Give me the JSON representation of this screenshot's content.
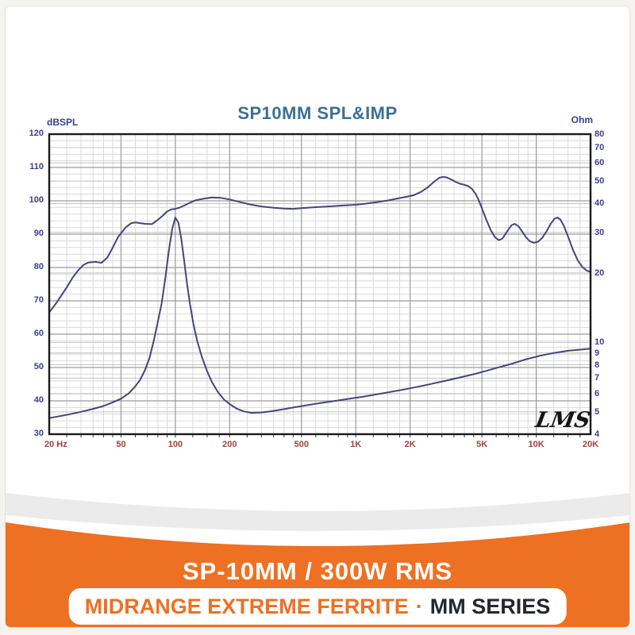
{
  "colors": {
    "accent": "#ee7023",
    "page_bg": "#f4f3f0",
    "title": "#3c7092",
    "blue_tick": "#3a3f8f",
    "red_tick": "#a43f3f",
    "curve": "#45457a",
    "grid_major": "#9a9a9a",
    "grid_minor": "#dadada",
    "grid_ohm": "#c3c3c3",
    "axis_border": "#1a1a1a",
    "wave_gray": "#ebebeb",
    "pill_dark": "#23272e"
  },
  "banner": {
    "title": "SP-10MM / 300W RMS",
    "pill_left": "MIDRANGE EXTREME FERRITE",
    "pill_sep": "·",
    "pill_right": "MM SERIES"
  },
  "chart_data": {
    "type": "line",
    "title": "SP10MM SPL&IMP",
    "watermark": "LMS",
    "grid": true,
    "x_axis": {
      "scale": "log",
      "unit": "Hz",
      "min": 20,
      "max": 20000,
      "ticks": [
        {
          "v": 20,
          "label": "20 Hz"
        },
        {
          "v": 50,
          "label": "50"
        },
        {
          "v": 100,
          "label": "100"
        },
        {
          "v": 200,
          "label": "200"
        },
        {
          "v": 500,
          "label": "500"
        },
        {
          "v": 1000,
          "label": "1K"
        },
        {
          "v": 2000,
          "label": "2K"
        },
        {
          "v": 5000,
          "label": "5K"
        },
        {
          "v": 10000,
          "label": "10K"
        },
        {
          "v": 20000,
          "label": "20K"
        }
      ],
      "major_gridlines": [
        50,
        100,
        200,
        500,
        1000,
        2000,
        5000,
        10000
      ],
      "minor_gridlines": [
        25,
        30,
        35,
        40,
        45,
        60,
        70,
        80,
        90,
        125,
        150,
        175,
        250,
        300,
        350,
        400,
        450,
        600,
        700,
        800,
        900,
        1250,
        1500,
        1750,
        2500,
        3000,
        3500,
        4000,
        4500,
        6000,
        7000,
        8000,
        9000,
        12500,
        15000,
        17500
      ]
    },
    "y_left": {
      "label": "dBSPL",
      "scale": "linear",
      "min": 30,
      "max": 120,
      "major_step": 10,
      "minor_step": 2,
      "ticks": [
        120,
        110,
        100,
        90,
        80,
        70,
        60,
        50,
        40,
        30
      ]
    },
    "y_right": {
      "label": "Ohm",
      "scale": "log",
      "min": 4,
      "max": 80,
      "ticks": [
        80,
        70,
        60,
        50,
        40,
        30,
        20,
        10,
        9,
        8,
        7,
        6,
        5,
        4
      ],
      "gridlines": [
        70,
        60,
        50,
        40,
        30,
        20,
        10,
        9,
        8,
        7,
        6,
        5
      ]
    },
    "series": [
      {
        "name": "SPL",
        "axis": "left",
        "unit": "dBSPL",
        "points": [
          [
            20,
            66.5
          ],
          [
            22,
            69.5
          ],
          [
            25,
            74
          ],
          [
            27,
            77
          ],
          [
            29,
            79.2
          ],
          [
            31,
            80.8
          ],
          [
            33,
            81.5
          ],
          [
            36,
            81.7
          ],
          [
            39,
            81.4
          ],
          [
            42,
            83
          ],
          [
            45,
            86
          ],
          [
            48,
            89
          ],
          [
            50,
            90.3
          ],
          [
            53,
            92
          ],
          [
            57,
            93.3
          ],
          [
            60,
            93.5
          ],
          [
            64,
            93.3
          ],
          [
            68,
            93.1
          ],
          [
            74,
            93.0
          ],
          [
            80,
            94.3
          ],
          [
            85,
            95.5
          ],
          [
            90,
            96.8
          ],
          [
            95,
            97.4
          ],
          [
            100,
            97.6
          ],
          [
            106,
            98.0
          ],
          [
            113,
            98.7
          ],
          [
            120,
            99.4
          ],
          [
            130,
            100.2
          ],
          [
            145,
            100.7
          ],
          [
            160,
            101.0
          ],
          [
            178,
            100.9
          ],
          [
            200,
            100.4
          ],
          [
            230,
            99.6
          ],
          [
            260,
            98.9
          ],
          [
            300,
            98.3
          ],
          [
            350,
            97.9
          ],
          [
            400,
            97.7
          ],
          [
            450,
            97.6
          ],
          [
            500,
            97.8
          ],
          [
            600,
            98.1
          ],
          [
            700,
            98.3
          ],
          [
            850,
            98.6
          ],
          [
            1000,
            98.8
          ],
          [
            1150,
            99.2
          ],
          [
            1300,
            99.6
          ],
          [
            1500,
            100.1
          ],
          [
            1700,
            100.7
          ],
          [
            1900,
            101.2
          ],
          [
            2100,
            101.7
          ],
          [
            2300,
            102.7
          ],
          [
            2500,
            104.0
          ],
          [
            2700,
            105.6
          ],
          [
            2900,
            106.9
          ],
          [
            3050,
            107.2
          ],
          [
            3200,
            107.0
          ],
          [
            3400,
            106.3
          ],
          [
            3600,
            105.6
          ],
          [
            3800,
            105.1
          ],
          [
            4000,
            104.8
          ],
          [
            4200,
            104.4
          ],
          [
            4400,
            103.6
          ],
          [
            4600,
            102.2
          ],
          [
            4800,
            100.2
          ],
          [
            5000,
            97.8
          ],
          [
            5300,
            94.2
          ],
          [
            5600,
            91.2
          ],
          [
            5900,
            89.1
          ],
          [
            6200,
            88.2
          ],
          [
            6500,
            88.7
          ],
          [
            6900,
            90.8
          ],
          [
            7300,
            92.7
          ],
          [
            7600,
            93.1
          ],
          [
            8000,
            92.3
          ],
          [
            8400,
            90.6
          ],
          [
            8800,
            89.0
          ],
          [
            9200,
            87.9
          ],
          [
            9700,
            87.4
          ],
          [
            10200,
            87.7
          ],
          [
            10800,
            88.9
          ],
          [
            11400,
            90.8
          ],
          [
            12000,
            93.0
          ],
          [
            12600,
            94.6
          ],
          [
            13100,
            95.0
          ],
          [
            13600,
            94.4
          ],
          [
            14200,
            92.6
          ],
          [
            15000,
            89.3
          ],
          [
            16000,
            85.2
          ],
          [
            17000,
            82.1
          ],
          [
            18000,
            80.2
          ],
          [
            19000,
            79.1
          ],
          [
            20000,
            78.7
          ]
        ]
      },
      {
        "name": "Impedance",
        "axis": "right",
        "unit": "Ohm",
        "points": [
          [
            20,
            4.7
          ],
          [
            25,
            4.85
          ],
          [
            30,
            5.0
          ],
          [
            35,
            5.15
          ],
          [
            40,
            5.3
          ],
          [
            45,
            5.5
          ],
          [
            50,
            5.7
          ],
          [
            55,
            6.0
          ],
          [
            60,
            6.45
          ],
          [
            64,
            6.9
          ],
          [
            68,
            7.6
          ],
          [
            72,
            8.6
          ],
          [
            76,
            10.2
          ],
          [
            80,
            12.3
          ],
          [
            84,
            14.8
          ],
          [
            88,
            19.0
          ],
          [
            92,
            25.0
          ],
          [
            96,
            31.0
          ],
          [
            100,
            34.8
          ],
          [
            104,
            33.0
          ],
          [
            108,
            28.0
          ],
          [
            112,
            22.5
          ],
          [
            116,
            18.0
          ],
          [
            120,
            15.0
          ],
          [
            126,
            12.0
          ],
          [
            132,
            10.2
          ],
          [
            140,
            8.7
          ],
          [
            150,
            7.5
          ],
          [
            160,
            6.7
          ],
          [
            172,
            6.1
          ],
          [
            186,
            5.65
          ],
          [
            200,
            5.4
          ],
          [
            220,
            5.15
          ],
          [
            240,
            5.02
          ],
          [
            265,
            4.95
          ],
          [
            300,
            4.97
          ],
          [
            340,
            5.03
          ],
          [
            390,
            5.12
          ],
          [
            450,
            5.22
          ],
          [
            520,
            5.32
          ],
          [
            600,
            5.42
          ],
          [
            700,
            5.52
          ],
          [
            820,
            5.62
          ],
          [
            950,
            5.72
          ],
          [
            1100,
            5.82
          ],
          [
            1300,
            5.95
          ],
          [
            1550,
            6.1
          ],
          [
            1850,
            6.25
          ],
          [
            2200,
            6.42
          ],
          [
            2600,
            6.6
          ],
          [
            3100,
            6.8
          ],
          [
            3700,
            7.02
          ],
          [
            4400,
            7.25
          ],
          [
            5200,
            7.5
          ],
          [
            6200,
            7.8
          ],
          [
            7400,
            8.1
          ],
          [
            8800,
            8.45
          ],
          [
            10500,
            8.75
          ],
          [
            12500,
            9.0
          ],
          [
            15000,
            9.2
          ],
          [
            17500,
            9.3
          ],
          [
            20000,
            9.4
          ]
        ]
      }
    ]
  }
}
